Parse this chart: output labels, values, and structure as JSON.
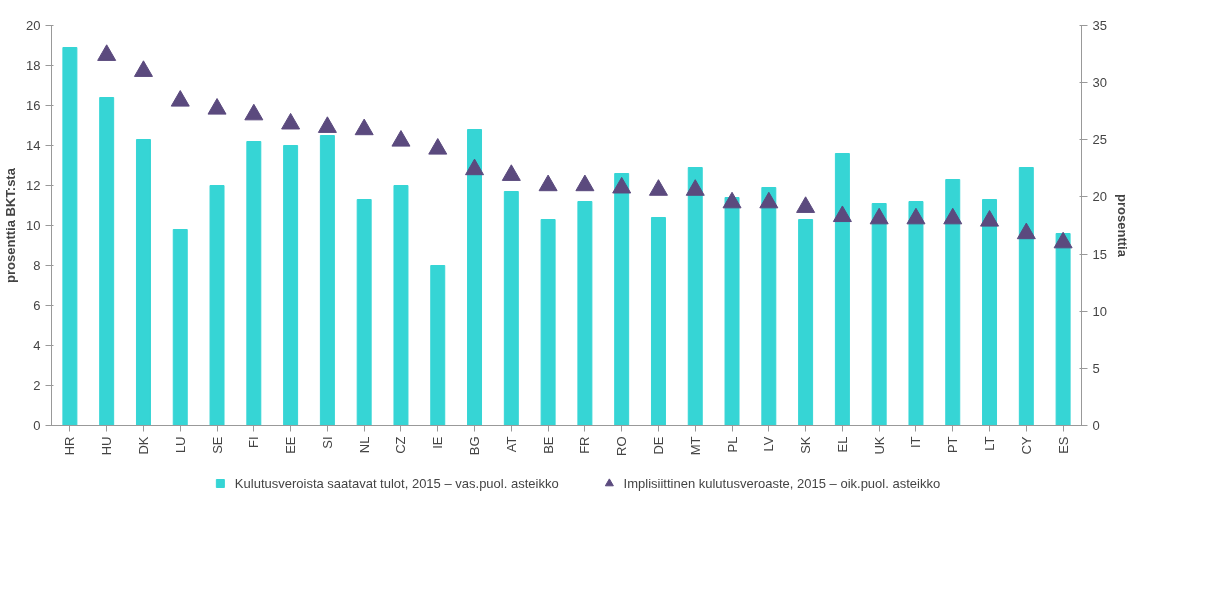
{
  "chart_data": {
    "type": "bar",
    "ylabel": "prosenttia BKT:sta",
    "y2label": "prosenttia",
    "categories": [
      "HR",
      "HU",
      "DK",
      "LU",
      "SE",
      "FI",
      "EE",
      "SI",
      "NL",
      "CZ",
      "IE",
      "BG",
      "AT",
      "BE",
      "FR",
      "RO",
      "DE",
      "MT",
      "PL",
      "LV",
      "SK",
      "EL",
      "UK",
      "IT",
      "PT",
      "LT",
      "CY",
      "ES"
    ],
    "series": [
      {
        "name": "Kulutusveroista saatavat tulot, 2015 – vas.puol. asteikko",
        "color": "#36d5d5",
        "values": [
          18.9,
          16.4,
          14.3,
          9.8,
          12.0,
          14.2,
          14.0,
          14.5,
          11.3,
          12.0,
          8.0,
          14.8,
          11.7,
          10.3,
          11.2,
          12.6,
          10.4,
          12.9,
          11.4,
          11.9,
          10.3,
          13.6,
          11.1,
          11.2,
          12.3,
          11.3,
          12.9,
          9.6
        ]
      },
      {
        "name": "Implisiittinen kulutusveroaste, 2015 – oik.puol. asteikko",
        "type": "scatter",
        "axis": "y2",
        "marker": "triangle",
        "color": "#5b4a7e",
        "values": [
          null,
          32.4,
          31.0,
          28.4,
          27.7,
          27.2,
          26.4,
          26.1,
          25.9,
          24.9,
          24.2,
          22.4,
          21.9,
          21.0,
          21.0,
          20.8,
          20.6,
          20.6,
          19.5,
          19.5,
          19.1,
          18.3,
          18.1,
          18.1,
          18.1,
          17.9,
          16.8,
          16.0
        ]
      }
    ],
    "ylim": [
      0,
      20
    ],
    "yticks": [
      0,
      2,
      4,
      6,
      8,
      10,
      12,
      14,
      16,
      18,
      20
    ],
    "y2lim": [
      0,
      35
    ],
    "y2ticks": [
      0,
      5,
      10,
      15,
      20,
      25,
      30,
      35
    ],
    "grid": false,
    "legend": "bottom"
  }
}
